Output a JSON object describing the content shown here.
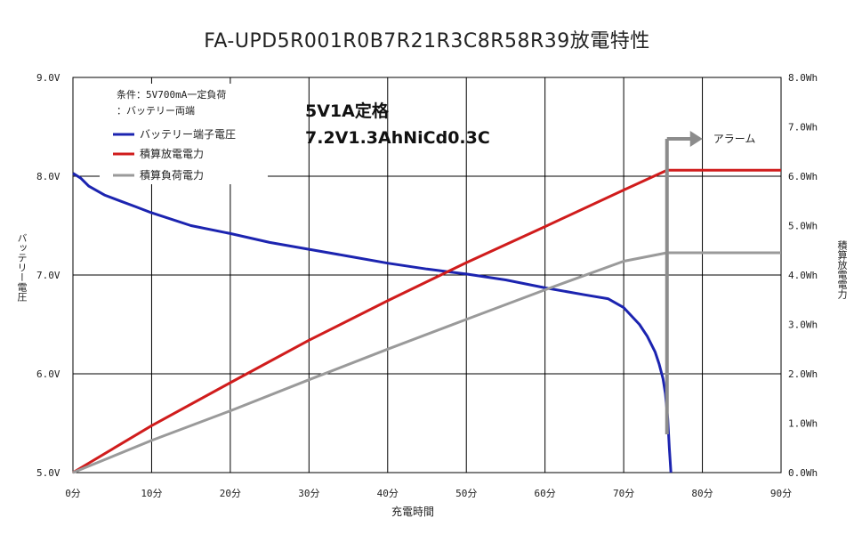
{
  "chart_data": {
    "type": "line",
    "title": "FA-UPD5R001R0B7R21R3C8R58R39放電特性",
    "annotations": {
      "spec_line1": "5V1A定格",
      "spec_line2": "7.2V1.3AhNiCd0.3C",
      "alarm": "アラーム",
      "alarm_time_min": 75.5
    },
    "legend": {
      "placement": "top-left",
      "condition_line1": "条件：5V700mA一定負荷",
      "condition_line2": "：バッテリー両端",
      "entries": [
        "バッテリー端子電圧",
        "積算放電電力",
        "積算負荷電力"
      ]
    },
    "xlabel": "充電時間",
    "ylabel": "バッテリー電圧",
    "y2label": "積算放電電力",
    "xlim": [
      0,
      90
    ],
    "ylim": [
      5.0,
      9.0
    ],
    "y2lim": [
      0.0,
      8.0
    ],
    "grid": true,
    "x_ticks": [
      "0分",
      "10分",
      "20分",
      "30分",
      "40分",
      "50分",
      "60分",
      "70分",
      "80分",
      "90分"
    ],
    "y_ticks": [
      "5.0V",
      "6.0V",
      "7.0V",
      "8.0V",
      "9.0V"
    ],
    "y2_ticks": [
      "0.0Wh",
      "1.0Wh",
      "2.0Wh",
      "3.0Wh",
      "4.0Wh",
      "5.0Wh",
      "6.0Wh",
      "7.0Wh",
      "8.0Wh"
    ],
    "series": [
      {
        "name": "バッテリー端子電圧",
        "axis": "left",
        "color": "#1c24b0",
        "x": [
          0,
          1,
          2,
          4,
          6,
          8,
          10,
          15,
          20,
          25,
          30,
          35,
          40,
          45,
          50,
          55,
          60,
          65,
          68,
          70,
          72,
          73,
          74,
          74.5,
          75,
          75.3,
          75.6,
          75.8,
          76
        ],
        "y": [
          8.03,
          7.98,
          7.9,
          7.81,
          7.75,
          7.69,
          7.63,
          7.5,
          7.42,
          7.33,
          7.26,
          7.19,
          7.12,
          7.06,
          7.01,
          6.95,
          6.87,
          6.8,
          6.76,
          6.67,
          6.5,
          6.38,
          6.22,
          6.1,
          5.95,
          5.8,
          5.55,
          5.25,
          5.0
        ]
      },
      {
        "name": "積算放電電力",
        "axis": "right",
        "color": "#d01c1c",
        "x": [
          0,
          10,
          20,
          30,
          40,
          50,
          60,
          70,
          75.5,
          90
        ],
        "y": [
          0.0,
          0.95,
          1.82,
          2.68,
          3.48,
          4.25,
          4.98,
          5.72,
          6.12,
          6.12
        ]
      },
      {
        "name": "積算負荷電力",
        "axis": "right",
        "color": "#9a9a9a",
        "x": [
          0,
          10,
          20,
          30,
          40,
          50,
          60,
          70,
          75.5,
          90
        ],
        "y": [
          0.0,
          0.65,
          1.25,
          1.88,
          2.5,
          3.1,
          3.7,
          4.28,
          4.45,
          4.45
        ]
      }
    ]
  }
}
